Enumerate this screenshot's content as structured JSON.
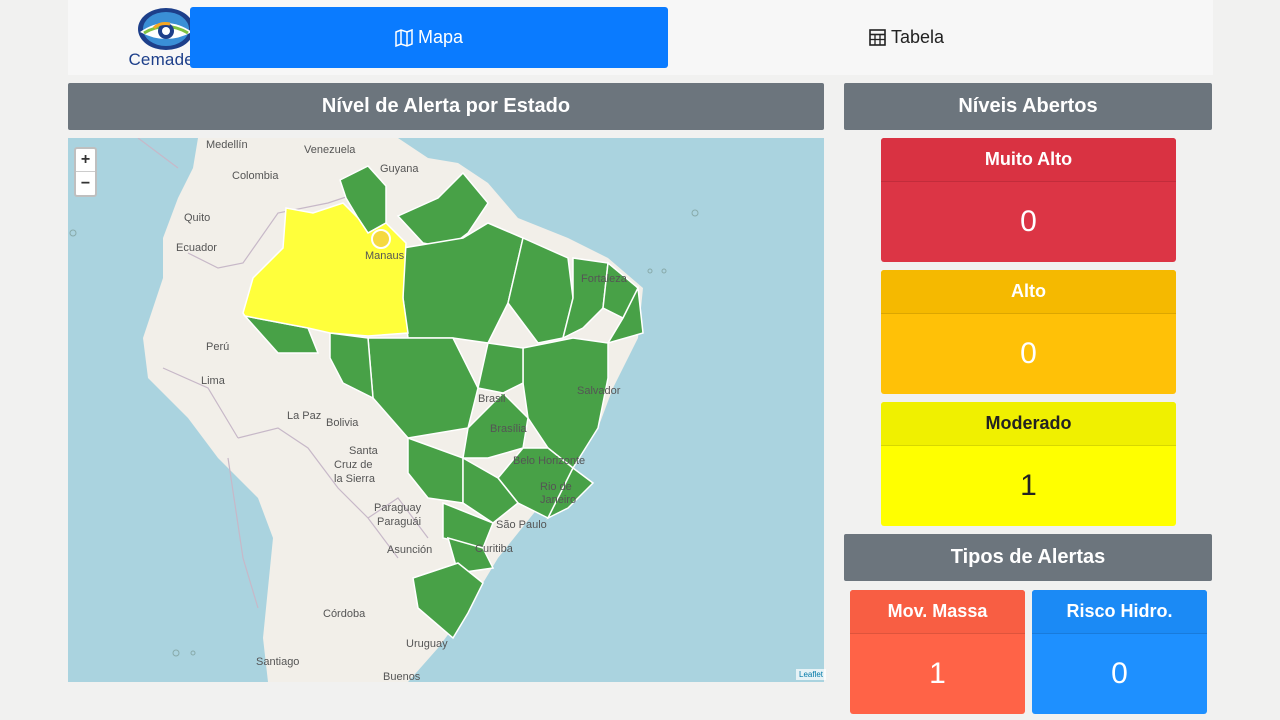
{
  "header": {
    "logo_text": "Cemaden",
    "nav": [
      {
        "label": "Mapa",
        "icon": "map-icon",
        "active": true
      },
      {
        "label": "Tabela",
        "icon": "table-icon",
        "active": false
      }
    ]
  },
  "map_panel": {
    "title": "Nível de Alerta por Estado",
    "zoom_in": "+",
    "zoom_out": "−",
    "attribution": "Leaflet",
    "labels": {
      "medellin": "Medellín",
      "venezuela": "Venezuela",
      "guyana": "Guyana",
      "colombia": "Colombia",
      "quito": "Quito",
      "ecuador": "Ecuador",
      "manaus": "Manaus",
      "fortaleza": "Fortaleza",
      "peru": "Perú",
      "lima": "Lima",
      "lapaz": "La Paz",
      "bolivia": "Bolivia",
      "brasil": "Brasil",
      "brasilia": "Brasília",
      "salvador": "Salvador",
      "santa1": "Santa",
      "santa2": "Cruz de",
      "santa3": "la Sierra",
      "belo": "Belo Horizonte",
      "rio1": "Rio de",
      "rio2": "Janeiro",
      "paraguay1": "Paraguay",
      "paraguay2": "Paraguái",
      "saopaulo": "São Paulo",
      "asuncion": "Asunción",
      "curitiba": "Curitiba",
      "cordoba": "Córdoba",
      "uruguay": "Uruguay",
      "santiago": "Santiago",
      "buenos": "Buenos"
    },
    "colors": {
      "alert_green": "#48a147",
      "alert_yellow": "#ffff3b",
      "water": "#aad3df",
      "land": "#f2efe9"
    }
  },
  "levels_panel": {
    "title": "Níveis Abertos",
    "cards": [
      {
        "label": "Muito Alto",
        "value": "0",
        "color": "#dc3545"
      },
      {
        "label": "Alto",
        "value": "0",
        "color": "#ffc107"
      },
      {
        "label": "Moderado",
        "value": "1",
        "color": "#ffff00"
      }
    ]
  },
  "types_panel": {
    "title": "Tipos de Alertas",
    "cards": [
      {
        "label": "Mov. Massa",
        "value": "1",
        "color": "#ff6347"
      },
      {
        "label": "Risco Hidro.",
        "value": "0",
        "color": "#1e90ff"
      }
    ]
  }
}
